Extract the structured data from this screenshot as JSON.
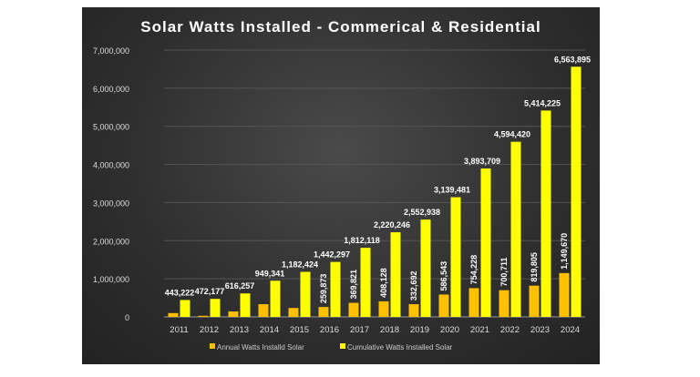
{
  "chart_data": {
    "type": "bar",
    "title": "Solar Watts Installed - Commerical & Residential",
    "categories": [
      "2011",
      "2012",
      "2013",
      "2014",
      "2015",
      "2016",
      "2017",
      "2018",
      "2019",
      "2020",
      "2021",
      "2022",
      "2023",
      "2024"
    ],
    "series": [
      {
        "name": "Annual Watts Installd Solar",
        "color": "#FFC000",
        "values": [
          100000,
          28955,
          144080,
          333084,
          233083,
          259873,
          369821,
          408128,
          332692,
          586543,
          754228,
          700711,
          819805,
          1149670
        ],
        "labels": [
          "",
          "",
          "",
          "",
          "",
          "259,873",
          "369,821",
          "408,128",
          "332,692",
          "586,543",
          "754,228",
          "700,711",
          "819,805",
          "1,149,670"
        ]
      },
      {
        "name": "Cumulative Watts  Installed Solar",
        "color": "#FFFF00",
        "values": [
          443222,
          472177,
          616257,
          949341,
          1182424,
          1442297,
          1812118,
          2220246,
          2552938,
          3139481,
          3893709,
          4594420,
          5414225,
          6563895
        ],
        "labels": [
          "443,222",
          "472,177",
          "616,257",
          "949,341",
          "1,182,424",
          "1,442,297",
          "1,812,118",
          "2,220,246",
          "2,552,938",
          "3,139,481",
          "3,893,709",
          "4,594,420",
          "5,414,225",
          "6,563,895"
        ]
      }
    ],
    "ylim": [
      0,
      7000000
    ],
    "yticks": [
      "0",
      "1,000,000",
      "2,000,000",
      "3,000,000",
      "4,000,000",
      "5,000,000",
      "6,000,000",
      "7,000,000"
    ],
    "grid": true,
    "legend": "bottom"
  }
}
